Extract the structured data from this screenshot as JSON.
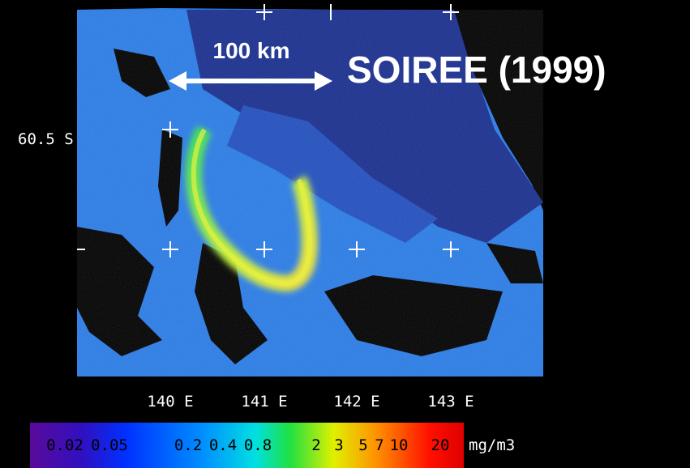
{
  "title": "SOIREE (1999)",
  "scale_bar": "100 km",
  "lat_label": "60.5 S",
  "lon_labels": [
    "140 E",
    "141 E",
    "142 E",
    "143 E"
  ],
  "colorbar": {
    "labels": [
      "0.02",
      "0.05",
      "0.2",
      "0.4",
      "0.8",
      "2",
      "3",
      "5",
      "7",
      "10",
      "20"
    ],
    "unit": "mg/m3"
  }
}
